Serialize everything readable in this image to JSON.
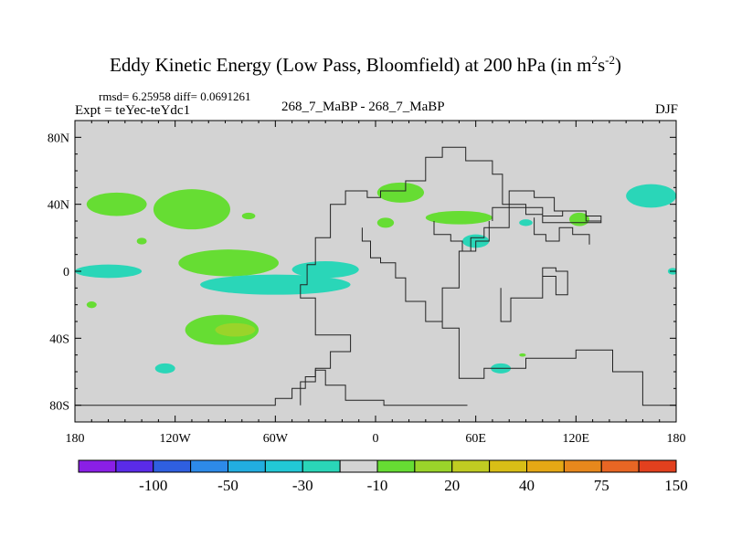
{
  "chart_data": {
    "type": "heatmap",
    "title_main": "Eddy Kinetic Energy (Low Pass, Bloomfield) at 200 hPa (in m",
    "title_units_sup1": "2",
    "title_units_mid": "s",
    "title_units_sup2": "-2",
    "title_end": ")",
    "stats_text": "rmsd= 6.25958 diff= 0.0691261",
    "left_label": "Expt = teYec-teYdc1",
    "center_label": "268_7_MaBP - 268_7_MaBP",
    "right_label": "DJF",
    "x_ticks": [
      {
        "lon": -180,
        "label": "180"
      },
      {
        "lon": -120,
        "label": "120W"
      },
      {
        "lon": -60,
        "label": "60W"
      },
      {
        "lon": 0,
        "label": "0"
      },
      {
        "lon": 60,
        "label": "60E"
      },
      {
        "lon": 120,
        "label": "120E"
      },
      {
        "lon": 180,
        "label": "180"
      }
    ],
    "y_ticks": [
      {
        "lat": 80,
        "label": "80N"
      },
      {
        "lat": 40,
        "label": "40N"
      },
      {
        "lat": 0,
        "label": "0"
      },
      {
        "lat": -40,
        "label": "40S"
      },
      {
        "lat": -80,
        "label": "80S"
      }
    ],
    "xlim": [
      -180,
      180
    ],
    "ylim": [
      -90,
      90
    ],
    "colorbar": {
      "colors": [
        "#8a1fe6",
        "#5a2be8",
        "#2f5fe0",
        "#2d8ae8",
        "#22aee0",
        "#22c8d6",
        "#2ad6b8",
        "#d3d3d3",
        "#66dd33",
        "#9ad42a",
        "#c0cc22",
        "#d8be16",
        "#e5a815",
        "#e7881c",
        "#e86624",
        "#e2401e"
      ],
      "labels": [
        {
          "boundary": 2,
          "text": "-100"
        },
        {
          "boundary": 4,
          "text": "-50"
        },
        {
          "boundary": 6,
          "text": "-30"
        },
        {
          "boundary": 8,
          "text": "-10"
        },
        {
          "boundary": 10,
          "text": "20"
        },
        {
          "boundary": 12,
          "text": "40"
        },
        {
          "boundary": 14,
          "text": "75"
        },
        {
          "boundary": 16,
          "text": "150"
        }
      ]
    },
    "anomaly_regions": [
      {
        "name": "n-pacific-west",
        "level": "10-20",
        "color": "#66dd33",
        "lon": -155,
        "lat": 40,
        "dlon": 18,
        "dlat": 7
      },
      {
        "name": "n-pacific-central",
        "level": "10-20",
        "color": "#66dd33",
        "lon": -110,
        "lat": 37,
        "dlon": 23,
        "dlat": 12
      },
      {
        "name": "n-pacific-small1",
        "level": "10-20",
        "color": "#66dd33",
        "lon": -140,
        "lat": 18,
        "dlon": 3,
        "dlat": 2
      },
      {
        "name": "n-pacific-small2",
        "level": "10-20",
        "color": "#66dd33",
        "lon": -76,
        "lat": 33,
        "dlon": 4,
        "dlat": 2
      },
      {
        "name": "tropical-pacific-band",
        "level": "10-20",
        "color": "#66dd33",
        "lon": -88,
        "lat": 5,
        "dlon": 30,
        "dlat": 8
      },
      {
        "name": "east-pacific-south",
        "level": "-10--5",
        "color": "#2ad6b8",
        "lon": -60,
        "lat": -8,
        "dlon": 45,
        "dlat": 6
      },
      {
        "name": "atlantic-eq",
        "level": "-10--5",
        "color": "#2ad6b8",
        "lon": -30,
        "lat": 1,
        "dlon": 20,
        "dlat": 5
      },
      {
        "name": "date-line-eq",
        "level": "-10--5",
        "color": "#2ad6b8",
        "lon": -160,
        "lat": 0,
        "dlon": 20,
        "dlat": 4
      },
      {
        "name": "s-pacific-green",
        "level": "10-20",
        "color": "#66dd33",
        "lon": -92,
        "lat": -35,
        "dlon": 22,
        "dlat": 9
      },
      {
        "name": "s-pacific-yellow",
        "level": "20-30",
        "color": "#9ad42a",
        "lon": -84,
        "lat": -35,
        "dlon": 12,
        "dlat": 4
      },
      {
        "name": "s-pacific-small",
        "level": "-10--5",
        "color": "#2ad6b8",
        "lon": -126,
        "lat": -58,
        "dlon": 6,
        "dlat": 3
      },
      {
        "name": "s-pacific-tiny",
        "level": "10-20",
        "color": "#66dd33",
        "lon": -170,
        "lat": -20,
        "dlon": 3,
        "dlat": 2
      },
      {
        "name": "europe-north",
        "level": "10-20",
        "color": "#66dd33",
        "lon": 15,
        "lat": 47,
        "dlon": 14,
        "dlat": 6
      },
      {
        "name": "mideast",
        "level": "10-20",
        "color": "#66dd33",
        "lon": 50,
        "lat": 32,
        "dlon": 20,
        "dlat": 4
      },
      {
        "name": "n-africa",
        "level": "10-20",
        "color": "#66dd33",
        "lon": 6,
        "lat": 29,
        "dlon": 5,
        "dlat": 3
      },
      {
        "name": "india",
        "level": "-10--5",
        "color": "#2ad6b8",
        "lon": 60,
        "lat": 18,
        "dlon": 8,
        "dlat": 4
      },
      {
        "name": "china",
        "level": "10-20",
        "color": "#66dd33",
        "lon": 122,
        "lat": 31,
        "dlon": 6,
        "dlat": 4
      },
      {
        "name": "se-asia",
        "level": "-10--5",
        "color": "#2ad6b8",
        "lon": 90,
        "lat": 29,
        "dlon": 4,
        "dlat": 2
      },
      {
        "name": "n-pacific-east",
        "level": "-10--5",
        "color": "#2ad6b8",
        "lon": 165,
        "lat": 45,
        "dlon": 15,
        "dlat": 7
      },
      {
        "name": "indian-ocean-south",
        "level": "-10--5",
        "color": "#2ad6b8",
        "lon": 75,
        "lat": -58,
        "dlon": 6,
        "dlat": 3
      },
      {
        "name": "indian-ocean-tiny",
        "level": "10-20",
        "color": "#66dd33",
        "lon": 88,
        "lat": -50,
        "dlon": 2,
        "dlat": 1
      },
      {
        "name": "australia-east",
        "level": "-10--5",
        "color": "#2ad6b8",
        "lon": 178,
        "lat": 0,
        "dlon": 3,
        "dlat": 2
      }
    ],
    "coastlines": [
      {
        "name": "south-america-africa",
        "points": [
          [
            -45,
            -80
          ],
          [
            -45,
            -66
          ],
          [
            -36,
            -66
          ],
          [
            -36,
            -58
          ],
          [
            -27,
            -58
          ],
          [
            -27,
            -48
          ],
          [
            -15,
            -48
          ],
          [
            -15,
            -38
          ],
          [
            -36,
            -38
          ],
          [
            -36,
            -16
          ],
          [
            -45,
            -16
          ],
          [
            -45,
            -8
          ],
          [
            -41,
            -8
          ],
          [
            -41,
            4
          ],
          [
            -36,
            4
          ],
          [
            -36,
            20
          ],
          [
            -27,
            20
          ],
          [
            -27,
            40
          ],
          [
            -18,
            40
          ],
          [
            -18,
            48
          ],
          [
            -5,
            48
          ],
          [
            -5,
            44
          ],
          [
            3,
            44
          ],
          [
            3,
            48
          ],
          [
            18,
            48
          ],
          [
            18,
            54
          ],
          [
            30,
            54
          ],
          [
            30,
            68
          ],
          [
            40,
            68
          ],
          [
            40,
            74
          ],
          [
            54,
            74
          ],
          [
            54,
            66
          ],
          [
            70,
            66
          ],
          [
            70,
            58
          ],
          [
            76,
            58
          ],
          [
            76,
            40
          ],
          [
            90,
            40
          ],
          [
            90,
            34
          ],
          [
            100,
            34
          ],
          [
            100,
            29
          ],
          [
            135,
            29
          ],
          [
            135,
            33
          ],
          [
            126,
            33
          ],
          [
            126,
            36
          ],
          [
            112,
            36
          ],
          [
            112,
            33
          ],
          [
            100,
            33
          ],
          [
            100,
            38
          ],
          [
            80,
            38
          ],
          [
            80,
            26
          ],
          [
            65,
            26
          ],
          [
            65,
            20
          ],
          [
            57,
            20
          ],
          [
            57,
            12
          ],
          [
            50,
            12
          ],
          [
            50,
            -10
          ],
          [
            40,
            -10
          ],
          [
            40,
            -34
          ],
          [
            50,
            -34
          ],
          [
            50,
            -64
          ],
          [
            65,
            -64
          ],
          [
            65,
            -58
          ],
          [
            90,
            -58
          ],
          [
            90,
            -52
          ],
          [
            120,
            -52
          ],
          [
            120,
            -47
          ],
          [
            142,
            -47
          ],
          [
            142,
            -60
          ],
          [
            160,
            -60
          ],
          [
            160,
            -80
          ],
          [
            180,
            -80
          ]
        ]
      },
      {
        "name": "africa-west",
        "points": [
          [
            -8,
            26
          ],
          [
            -8,
            18
          ],
          [
            -3,
            18
          ],
          [
            -3,
            8
          ],
          [
            3,
            8
          ],
          [
            3,
            5
          ],
          [
            12,
            5
          ],
          [
            12,
            -4
          ],
          [
            18,
            -4
          ],
          [
            18,
            -18
          ],
          [
            30,
            -18
          ],
          [
            30,
            -30
          ],
          [
            40,
            -30
          ]
        ]
      },
      {
        "name": "madagascar-india",
        "points": [
          [
            75,
            -10
          ],
          [
            75,
            -30
          ],
          [
            81,
            -30
          ],
          [
            81,
            -16
          ],
          [
            100,
            -16
          ],
          [
            100,
            -3
          ],
          [
            108,
            -3
          ],
          [
            108,
            -14
          ],
          [
            115,
            -14
          ],
          [
            115,
            0
          ],
          [
            108,
            0
          ],
          [
            108,
            2
          ],
          [
            100,
            2
          ],
          [
            100,
            -3
          ]
        ]
      },
      {
        "name": "antarctica-peninsula",
        "points": [
          [
            -180,
            -80
          ],
          [
            -60,
            -80
          ],
          [
            -60,
            -76
          ],
          [
            -50,
            -76
          ],
          [
            -50,
            -70
          ],
          [
            -42,
            -70
          ],
          [
            -42,
            -63
          ],
          [
            -36,
            -63
          ],
          [
            -36,
            -59
          ],
          [
            -30,
            -59
          ],
          [
            -30,
            -68
          ],
          [
            -18,
            -68
          ],
          [
            -18,
            -77
          ],
          [
            5,
            -77
          ],
          [
            5,
            -80
          ],
          [
            55,
            -80
          ]
        ]
      },
      {
        "name": "e-asia-loop",
        "points": [
          [
            70,
            30
          ],
          [
            70,
            38
          ],
          [
            80,
            38
          ],
          [
            80,
            48
          ],
          [
            95,
            48
          ],
          [
            95,
            44
          ],
          [
            107,
            44
          ],
          [
            107,
            36
          ],
          [
            126,
            36
          ],
          [
            126,
            30
          ],
          [
            135,
            30
          ]
        ]
      },
      {
        "name": "se-asia-loop",
        "points": [
          [
            95,
            32
          ],
          [
            95,
            22
          ],
          [
            102,
            22
          ],
          [
            102,
            18
          ],
          [
            110,
            18
          ],
          [
            110,
            26
          ],
          [
            118,
            26
          ],
          [
            118,
            22
          ],
          [
            128,
            22
          ],
          [
            128,
            16
          ]
        ]
      },
      {
        "name": "arabia",
        "points": [
          [
            35,
            30
          ],
          [
            35,
            22
          ],
          [
            45,
            22
          ],
          [
            45,
            18
          ],
          [
            52,
            18
          ],
          [
            52,
            12
          ],
          [
            60,
            12
          ],
          [
            60,
            18
          ],
          [
            68,
            18
          ],
          [
            68,
            30
          ]
        ]
      }
    ]
  }
}
